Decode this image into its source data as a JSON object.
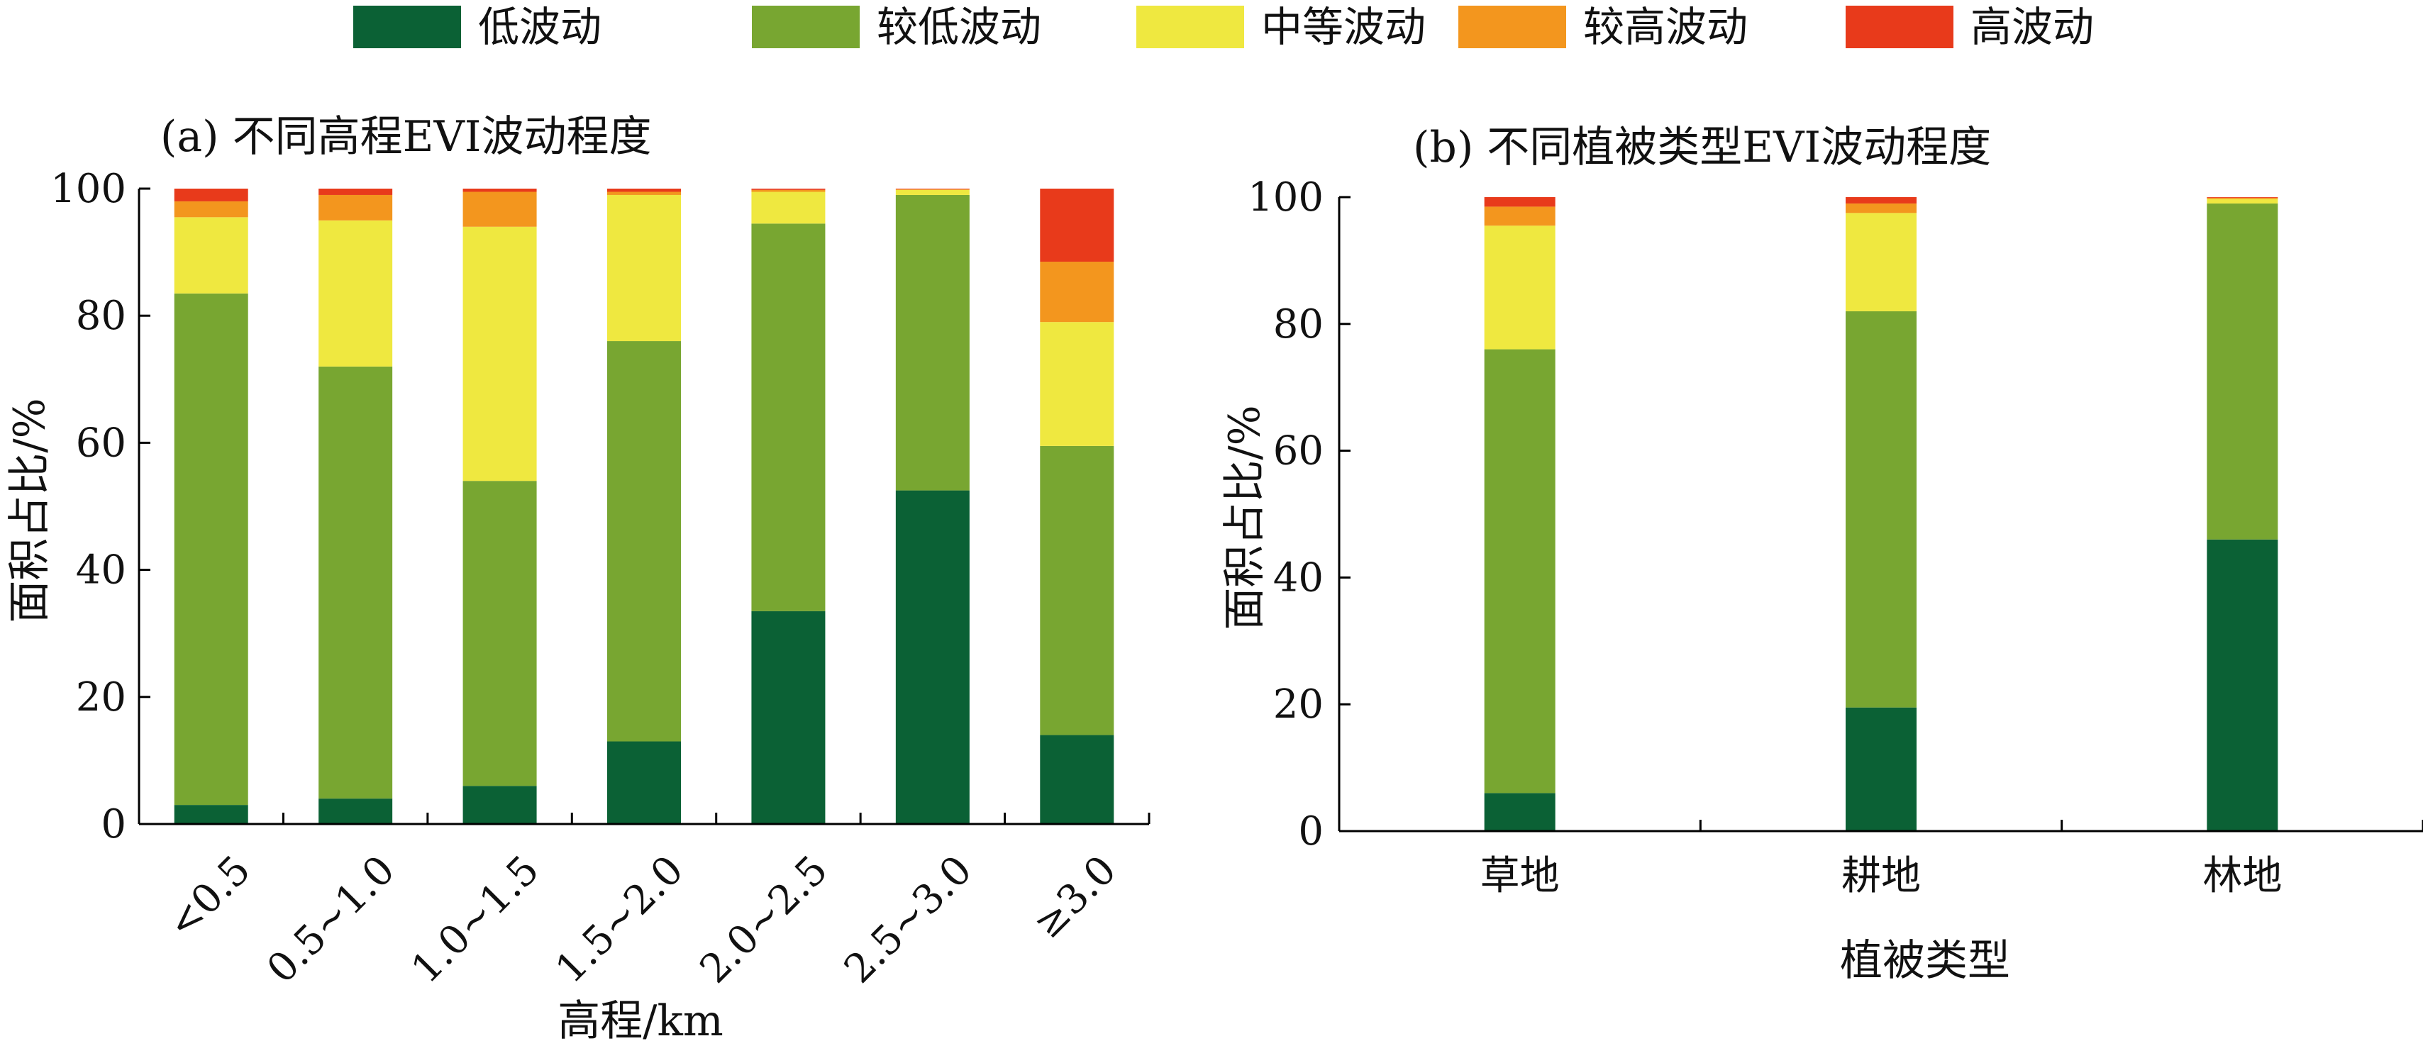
{
  "legend": [
    {
      "name": "低波动",
      "color": "#0b6135"
    },
    {
      "name": "较低波动",
      "color": "#78a631"
    },
    {
      "name": "中等波动",
      "color": "#efe840"
    },
    {
      "name": "较高波动",
      "color": "#f3961e"
    },
    {
      "name": "高波动",
      "color": "#e83a1b"
    }
  ],
  "chart_data": [
    {
      "type": "bar",
      "stacked": true,
      "title": "(a) 不同高程EVI波动程度",
      "xlabel": "高程/km",
      "ylabel": "面积占比/%",
      "ylim": [
        0,
        100
      ],
      "yticks": [
        "0",
        "20",
        "40",
        "60",
        "80",
        "100"
      ],
      "categories": [
        "<0.5",
        "0.5~1.0",
        "1.0~1.5",
        "1.5~2.0",
        "2.0~2.5",
        "2.5~3.0",
        "≥3.0"
      ],
      "series": [
        {
          "name": "低波动",
          "values": [
            3,
            4,
            6,
            13,
            33.5,
            52.5,
            14
          ]
        },
        {
          "name": "较低波动",
          "values": [
            80.5,
            68,
            48,
            63,
            61,
            46.5,
            45.5
          ]
        },
        {
          "name": "中等波动",
          "values": [
            12,
            23,
            40,
            23,
            5,
            0.8,
            19.5
          ]
        },
        {
          "name": "较高波动",
          "values": [
            2.5,
            4,
            5.5,
            0.5,
            0.3,
            0.1,
            9.5
          ]
        },
        {
          "name": "高波动",
          "values": [
            2,
            1,
            0.5,
            0.5,
            0.2,
            0.1,
            11.5
          ]
        }
      ]
    },
    {
      "type": "bar",
      "stacked": true,
      "title": "(b) 不同植被类型EVI波动程度",
      "xlabel": "植被类型",
      "ylabel": "面积占比/%",
      "ylim": [
        0,
        100
      ],
      "yticks": [
        "0",
        "20",
        "40",
        "60",
        "80",
        "100"
      ],
      "categories": [
        "草地",
        "耕地",
        "林地"
      ],
      "series": [
        {
          "name": "低波动",
          "values": [
            6,
            19.5,
            46
          ]
        },
        {
          "name": "较低波动",
          "values": [
            70,
            62.5,
            53
          ]
        },
        {
          "name": "中等波动",
          "values": [
            19.5,
            15.5,
            0.7
          ]
        },
        {
          "name": "较高波动",
          "values": [
            3,
            1.5,
            0.2
          ]
        },
        {
          "name": "高波动",
          "values": [
            1.5,
            1,
            0.1
          ]
        }
      ]
    }
  ]
}
